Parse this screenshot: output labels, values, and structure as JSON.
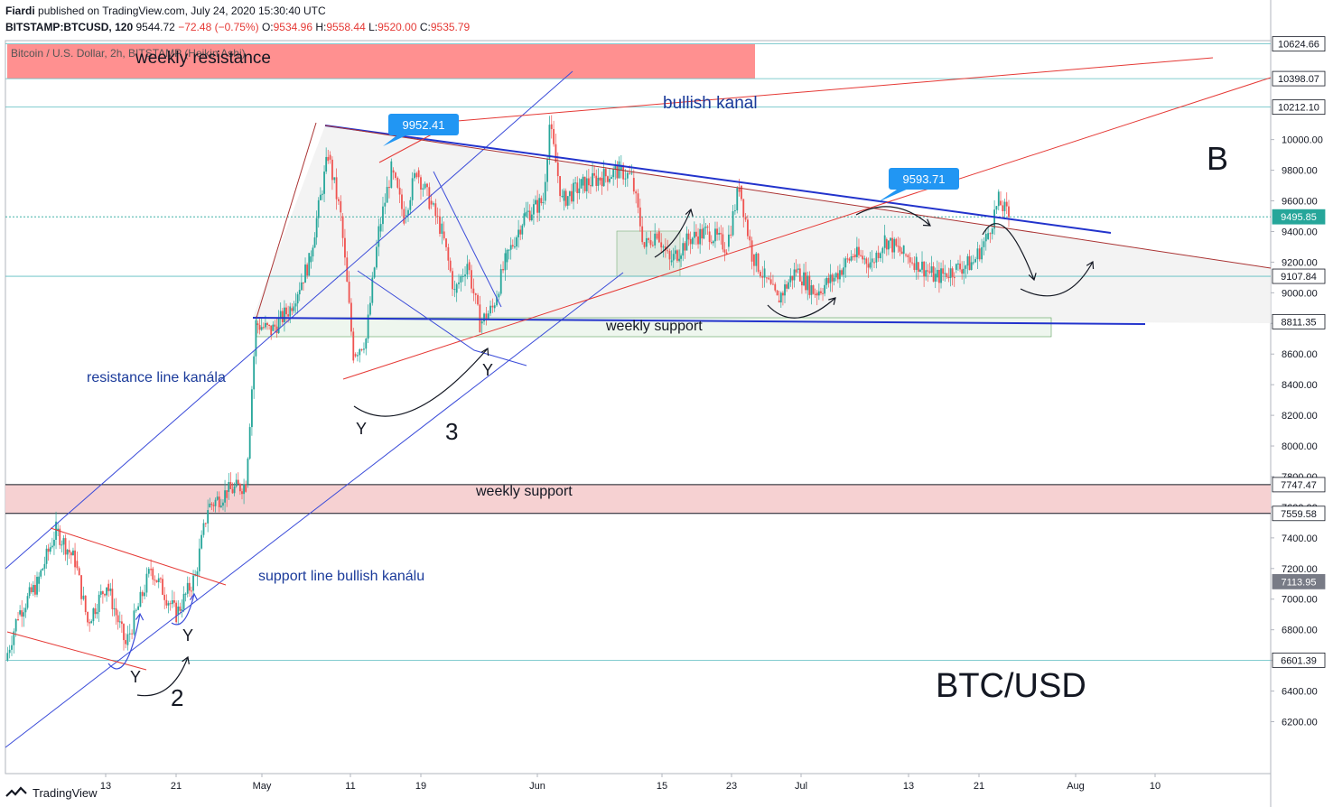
{
  "header": {
    "author": "Fiardi",
    "published_text": "published on TradingView.com, July 24, 2020 15:30:40 UTC",
    "symbol": "BITSTAMP:BTCUSD, 120",
    "last": "9544.72",
    "change": "−72.48 (−0.75%)",
    "o_label": "O:",
    "o_value": "9534.96",
    "h_label": "H:",
    "h_value": "9558.44",
    "l_label": "L:",
    "l_value": "9520.00",
    "c_label": "C:",
    "c_value": "9535.79"
  },
  "footer": {
    "brand": "TradingView"
  },
  "chart_data": {
    "type": "candlestick",
    "title": "Bitcoin / U.S. Dollar, 2h, BITSTAMP (Heikin Ashi)",
    "symbol": "BTC/USD",
    "timeframe": "2h",
    "ylim": [
      6000,
      10750
    ],
    "y_ticks": [
      6200,
      6400,
      6600,
      6800,
      7000,
      7200,
      7400,
      7600,
      7800,
      8000,
      8200,
      8400,
      8600,
      8800,
      9000,
      9200,
      9400,
      9600,
      9800,
      10000
    ],
    "x_ticks": [
      "13",
      "21",
      "May",
      "11",
      "19",
      "Jun",
      "15",
      "23",
      "Jul",
      "13",
      "21",
      "Aug",
      "10"
    ],
    "price_labels": [
      {
        "value": 10624.66,
        "text": "10624.66",
        "style": "outline"
      },
      {
        "value": 10398.07,
        "text": "10398.07",
        "style": "outline"
      },
      {
        "value": 10212.1,
        "text": "10212.10",
        "style": "outline"
      },
      {
        "value": 9495.85,
        "text": "9495.85",
        "style": "current"
      },
      {
        "value": 9107.84,
        "text": "9107.84",
        "style": "outline"
      },
      {
        "value": 8811.35,
        "text": "8811.35",
        "style": "outline"
      },
      {
        "value": 7747.47,
        "text": "7747.47",
        "style": "outline"
      },
      {
        "value": 7559.58,
        "text": "7559.58",
        "style": "outline"
      },
      {
        "value": 7113.95,
        "text": "7113.95",
        "style": "gray"
      },
      {
        "value": 6601.39,
        "text": "6601.39",
        "style": "outline"
      }
    ],
    "zones": [
      {
        "label": "weekly resistance",
        "from": 10398.07,
        "to": 10624.66,
        "color": "#ff8a8a"
      },
      {
        "label": "weekly support",
        "from": 7559.58,
        "to": 7747.47,
        "color": "#f6cfd0"
      },
      {
        "label": "weekly support",
        "from": 8720,
        "to": 8811.35,
        "color": "#eef6ee"
      }
    ],
    "callouts": [
      {
        "text": "9952.41",
        "color": "#2196f3"
      },
      {
        "text": "9593.71",
        "color": "#2196f3"
      }
    ],
    "annotations": {
      "bullish_kanal": "bullish kanal",
      "resistance_line": "resistance line kanála",
      "support_line": "support line bullish kanálu",
      "weekly_support_lower": "weekly support",
      "weekly_support_upper": "weekly support",
      "weekly_resistance": "weekly resistance",
      "wave_b": "B",
      "wave_3": "3",
      "wave_2": "2",
      "y_marks": [
        "Y",
        "Y",
        "Y",
        "Y"
      ],
      "pair": "BTC/USD"
    },
    "path": [
      {
        "x": 0.0,
        "y": 6600
      },
      {
        "x": 0.01,
        "y": 6900
      },
      {
        "x": 0.025,
        "y": 7100
      },
      {
        "x": 0.04,
        "y": 7450
      },
      {
        "x": 0.055,
        "y": 7250
      },
      {
        "x": 0.065,
        "y": 6850
      },
      {
        "x": 0.08,
        "y": 7100
      },
      {
        "x": 0.095,
        "y": 6700
      },
      {
        "x": 0.105,
        "y": 6950
      },
      {
        "x": 0.115,
        "y": 7200
      },
      {
        "x": 0.135,
        "y": 6900
      },
      {
        "x": 0.15,
        "y": 7150
      },
      {
        "x": 0.16,
        "y": 7600
      },
      {
        "x": 0.175,
        "y": 7700
      },
      {
        "x": 0.19,
        "y": 7750
      },
      {
        "x": 0.198,
        "y": 8800
      },
      {
        "x": 0.21,
        "y": 8750
      },
      {
        "x": 0.225,
        "y": 8900
      },
      {
        "x": 0.24,
        "y": 9200
      },
      {
        "x": 0.255,
        "y": 9900
      },
      {
        "x": 0.265,
        "y": 9500
      },
      {
        "x": 0.275,
        "y": 8600
      },
      {
        "x": 0.285,
        "y": 8700
      },
      {
        "x": 0.295,
        "y": 9400
      },
      {
        "x": 0.305,
        "y": 9800
      },
      {
        "x": 0.315,
        "y": 9500
      },
      {
        "x": 0.325,
        "y": 9800
      },
      {
        "x": 0.335,
        "y": 9600
      },
      {
        "x": 0.345,
        "y": 9400
      },
      {
        "x": 0.355,
        "y": 9000
      },
      {
        "x": 0.365,
        "y": 9200
      },
      {
        "x": 0.375,
        "y": 8800
      },
      {
        "x": 0.385,
        "y": 8900
      },
      {
        "x": 0.395,
        "y": 9200
      },
      {
        "x": 0.41,
        "y": 9500
      },
      {
        "x": 0.425,
        "y": 9600
      },
      {
        "x": 0.43,
        "y": 10100
      },
      {
        "x": 0.44,
        "y": 9600
      },
      {
        "x": 0.455,
        "y": 9700
      },
      {
        "x": 0.47,
        "y": 9750
      },
      {
        "x": 0.485,
        "y": 9800
      },
      {
        "x": 0.495,
        "y": 9750
      },
      {
        "x": 0.505,
        "y": 9300
      },
      {
        "x": 0.515,
        "y": 9400
      },
      {
        "x": 0.525,
        "y": 9200
      },
      {
        "x": 0.54,
        "y": 9350
      },
      {
        "x": 0.555,
        "y": 9400
      },
      {
        "x": 0.57,
        "y": 9300
      },
      {
        "x": 0.58,
        "y": 9700
      },
      {
        "x": 0.59,
        "y": 9250
      },
      {
        "x": 0.6,
        "y": 9100
      },
      {
        "x": 0.61,
        "y": 8950
      },
      {
        "x": 0.625,
        "y": 9150
      },
      {
        "x": 0.64,
        "y": 9000
      },
      {
        "x": 0.655,
        "y": 9100
      },
      {
        "x": 0.67,
        "y": 9250
      },
      {
        "x": 0.685,
        "y": 9200
      },
      {
        "x": 0.695,
        "y": 9350
      },
      {
        "x": 0.71,
        "y": 9250
      },
      {
        "x": 0.72,
        "y": 9200
      },
      {
        "x": 0.735,
        "y": 9100
      },
      {
        "x": 0.75,
        "y": 9150
      },
      {
        "x": 0.765,
        "y": 9200
      },
      {
        "x": 0.775,
        "y": 9350
      },
      {
        "x": 0.785,
        "y": 9600
      },
      {
        "x": 0.793,
        "y": 9500
      }
    ]
  }
}
